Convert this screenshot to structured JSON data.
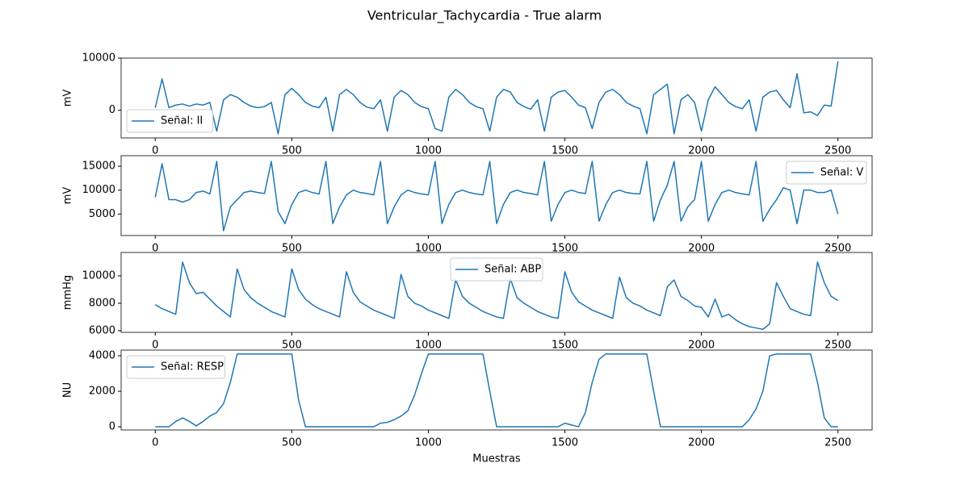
{
  "title": "Ventricular_Tachycardia - True alarm",
  "chart_data": [
    {
      "type": "line",
      "ylabel": "mV",
      "legend": "lower left",
      "xlim": [
        -125,
        2625
      ],
      "xticks": [
        0,
        500,
        1000,
        1500,
        2000,
        2500
      ],
      "ylim": [
        -5300,
        10000
      ],
      "yticks": [
        0,
        10000
      ],
      "x": [
        0,
        25,
        50,
        75,
        100,
        125,
        150,
        175,
        200,
        225,
        250,
        275,
        300,
        325,
        350,
        375,
        400,
        425,
        450,
        475,
        500,
        525,
        550,
        575,
        600,
        625,
        650,
        675,
        700,
        725,
        750,
        775,
        800,
        825,
        850,
        875,
        900,
        925,
        950,
        975,
        1000,
        1025,
        1050,
        1075,
        1100,
        1125,
        1150,
        1175,
        1200,
        1225,
        1250,
        1275,
        1300,
        1325,
        1350,
        1375,
        1400,
        1425,
        1450,
        1475,
        1500,
        1525,
        1550,
        1575,
        1600,
        1625,
        1650,
        1675,
        1700,
        1725,
        1750,
        1775,
        1800,
        1825,
        1850,
        1875,
        1900,
        1925,
        1950,
        1975,
        2000,
        2025,
        2050,
        2075,
        2100,
        2125,
        2150,
        2175,
        2200,
        2225,
        2250,
        2275,
        2300,
        2325,
        2350,
        2375,
        2400,
        2425,
        2450,
        2475,
        2500
      ],
      "series": [
        {
          "name": "Señal: II",
          "color": "#1f77b4",
          "values": [
            500,
            6000,
            500,
            1000,
            1200,
            800,
            1200,
            1000,
            1500,
            -4000,
            2000,
            3000,
            2500,
            1500,
            800,
            500,
            700,
            1500,
            -4500,
            3000,
            4200,
            3000,
            1500,
            800,
            500,
            2500,
            -4000,
            3000,
            4000,
            3000,
            1500,
            600,
            300,
            2000,
            -4000,
            2500,
            3800,
            3000,
            1500,
            700,
            300,
            -3500,
            -4000,
            2500,
            4000,
            3000,
            1500,
            700,
            300,
            -4000,
            2500,
            4000,
            3500,
            1500,
            700,
            200,
            2000,
            -4000,
            2500,
            3500,
            3800,
            2500,
            1000,
            500,
            -3500,
            1500,
            3500,
            4000,
            3000,
            1500,
            800,
            300,
            -4500,
            3000,
            4000,
            5000,
            -4500,
            2000,
            3000,
            1500,
            -4000,
            2000,
            4500,
            3000,
            1500,
            700,
            300,
            2000,
            -4000,
            2500,
            3500,
            3800,
            2000,
            500,
            7000,
            -500,
            -300,
            -1000,
            1000,
            800,
            9400
          ]
        }
      ]
    },
    {
      "type": "line",
      "ylabel": "mV",
      "legend": "upper right",
      "xlim": [
        -125,
        2625
      ],
      "xticks": [
        0,
        500,
        1000,
        1500,
        2000,
        2500
      ],
      "ylim": [
        500,
        17200
      ],
      "yticks": [
        5000,
        10000,
        15000
      ],
      "x": [
        0,
        25,
        50,
        75,
        100,
        125,
        150,
        175,
        200,
        225,
        250,
        275,
        300,
        325,
        350,
        375,
        400,
        425,
        450,
        475,
        500,
        525,
        550,
        575,
        600,
        625,
        650,
        675,
        700,
        725,
        750,
        775,
        800,
        825,
        850,
        875,
        900,
        925,
        950,
        975,
        1000,
        1025,
        1050,
        1075,
        1100,
        1125,
        1150,
        1175,
        1200,
        1225,
        1250,
        1275,
        1300,
        1325,
        1350,
        1375,
        1400,
        1425,
        1450,
        1475,
        1500,
        1525,
        1550,
        1575,
        1600,
        1625,
        1650,
        1675,
        1700,
        1725,
        1750,
        1775,
        1800,
        1825,
        1850,
        1875,
        1900,
        1925,
        1950,
        1975,
        2000,
        2025,
        2050,
        2075,
        2100,
        2125,
        2150,
        2175,
        2200,
        2225,
        2250,
        2275,
        2300,
        2325,
        2350,
        2375,
        2400,
        2425,
        2450,
        2475,
        2500
      ],
      "series": [
        {
          "name": "Señal: V",
          "color": "#1f77b4",
          "values": [
            8500,
            15500,
            8000,
            8000,
            7500,
            8000,
            9500,
            9800,
            9200,
            16000,
            1500,
            6500,
            8000,
            9500,
            9800,
            9500,
            9300,
            16000,
            5500,
            3000,
            7000,
            9500,
            10000,
            9500,
            9200,
            16000,
            3000,
            6500,
            9000,
            10000,
            9500,
            9300,
            9000,
            16000,
            3000,
            6500,
            9000,
            10000,
            9500,
            9200,
            9000,
            16000,
            3000,
            7000,
            9500,
            10000,
            9500,
            9200,
            9000,
            16000,
            3000,
            7000,
            9500,
            10000,
            9500,
            9300,
            9000,
            16000,
            3500,
            7000,
            9500,
            10000,
            9500,
            9300,
            16000,
            3500,
            7000,
            9500,
            10000,
            9500,
            9300,
            9200,
            16000,
            3500,
            8000,
            11000,
            16000,
            3500,
            6500,
            8000,
            16000,
            3500,
            7000,
            9500,
            10000,
            9500,
            9200,
            9000,
            16000,
            3500,
            6000,
            8000,
            10500,
            10000,
            3000,
            10000,
            10000,
            9500,
            9500,
            10000,
            5000
          ]
        }
      ]
    },
    {
      "type": "line",
      "ylabel": "mmHg",
      "legend": "upper center",
      "xlim": [
        -125,
        2625
      ],
      "xticks": [
        0,
        500,
        1000,
        1500,
        2000,
        2500
      ],
      "ylim": [
        5880,
        11700
      ],
      "yticks": [
        6000,
        8000,
        10000
      ],
      "x": [
        0,
        25,
        50,
        75,
        100,
        125,
        150,
        175,
        200,
        225,
        250,
        275,
        300,
        325,
        350,
        375,
        400,
        425,
        450,
        475,
        500,
        525,
        550,
        575,
        600,
        625,
        650,
        675,
        700,
        725,
        750,
        775,
        800,
        825,
        850,
        875,
        900,
        925,
        950,
        975,
        1000,
        1025,
        1050,
        1075,
        1100,
        1125,
        1150,
        1175,
        1200,
        1225,
        1250,
        1275,
        1300,
        1325,
        1350,
        1375,
        1400,
        1425,
        1450,
        1475,
        1500,
        1525,
        1550,
        1575,
        1600,
        1625,
        1650,
        1675,
        1700,
        1725,
        1750,
        1775,
        1800,
        1825,
        1850,
        1875,
        1900,
        1925,
        1950,
        1975,
        2000,
        2025,
        2050,
        2075,
        2100,
        2125,
        2150,
        2175,
        2200,
        2225,
        2250,
        2275,
        2300,
        2325,
        2350,
        2375,
        2400,
        2425,
        2450,
        2475,
        2500
      ],
      "series": [
        {
          "name": "Señal: ABP",
          "color": "#1f77b4",
          "values": [
            7900,
            7600,
            7400,
            7200,
            11000,
            9500,
            8700,
            8800,
            8300,
            7800,
            7400,
            7000,
            10500,
            9000,
            8400,
            8000,
            7700,
            7400,
            7200,
            7000,
            10500,
            9000,
            8300,
            7900,
            7600,
            7400,
            7200,
            7000,
            10300,
            8800,
            8100,
            7800,
            7500,
            7300,
            7100,
            6900,
            10100,
            8500,
            8000,
            7800,
            7500,
            7300,
            7100,
            6900,
            9700,
            8500,
            8000,
            7700,
            7400,
            7200,
            7000,
            6900,
            9800,
            8400,
            8000,
            7700,
            7400,
            7200,
            7000,
            6900,
            10300,
            8800,
            8100,
            7800,
            7500,
            7300,
            7100,
            6900,
            9900,
            8400,
            8000,
            7800,
            7500,
            7300,
            7100,
            9200,
            9700,
            8500,
            8200,
            7800,
            7700,
            7000,
            8300,
            7000,
            7200,
            6800,
            6500,
            6300,
            6200,
            6100,
            6500,
            9500,
            8500,
            7600,
            7400,
            7200,
            7100,
            11000,
            9500,
            8500,
            8200
          ]
        }
      ]
    },
    {
      "type": "line",
      "ylabel": "NU",
      "xlabel": "Muestras",
      "legend": "upper left",
      "xlim": [
        -125,
        2625
      ],
      "xticks": [
        0,
        500,
        1000,
        1500,
        2000,
        2500
      ],
      "ylim": [
        -180,
        4320
      ],
      "yticks": [
        0,
        2000,
        4000
      ],
      "x": [
        0,
        25,
        50,
        75,
        100,
        125,
        150,
        175,
        200,
        225,
        250,
        275,
        300,
        325,
        350,
        375,
        400,
        425,
        450,
        475,
        500,
        525,
        550,
        575,
        600,
        625,
        650,
        675,
        700,
        725,
        750,
        775,
        800,
        825,
        850,
        875,
        900,
        925,
        950,
        975,
        1000,
        1025,
        1050,
        1075,
        1100,
        1125,
        1150,
        1175,
        1200,
        1225,
        1250,
        1275,
        1300,
        1325,
        1350,
        1375,
        1400,
        1425,
        1450,
        1475,
        1500,
        1525,
        1550,
        1575,
        1600,
        1625,
        1650,
        1675,
        1700,
        1725,
        1750,
        1775,
        1800,
        1825,
        1850,
        1875,
        1900,
        1925,
        1950,
        1975,
        2000,
        2025,
        2050,
        2075,
        2100,
        2125,
        2150,
        2175,
        2200,
        2225,
        2250,
        2275,
        2300,
        2325,
        2350,
        2375,
        2400,
        2425,
        2450,
        2475,
        2500
      ],
      "series": [
        {
          "name": "Señal: RESP",
          "color": "#1f77b4",
          "values": [
            0,
            0,
            0,
            300,
            500,
            300,
            50,
            300,
            600,
            800,
            1300,
            2500,
            4100,
            4100,
            4100,
            4100,
            4100,
            4100,
            4100,
            4100,
            4100,
            1500,
            0,
            0,
            0,
            0,
            0,
            0,
            0,
            0,
            0,
            0,
            0,
            200,
            250,
            400,
            600,
            900,
            1800,
            3000,
            4100,
            4100,
            4100,
            4100,
            4100,
            4100,
            4100,
            4100,
            4100,
            2000,
            0,
            0,
            0,
            0,
            0,
            0,
            0,
            0,
            0,
            0,
            200,
            100,
            0,
            800,
            2500,
            3800,
            4100,
            4100,
            4100,
            4100,
            4100,
            4100,
            4100,
            2000,
            0,
            0,
            0,
            0,
            0,
            0,
            0,
            0,
            0,
            0,
            0,
            0,
            0,
            400,
            1000,
            2000,
            4000,
            4100,
            4100,
            4100,
            4100,
            4100,
            4100,
            2500,
            500,
            0,
            0
          ]
        }
      ]
    }
  ]
}
